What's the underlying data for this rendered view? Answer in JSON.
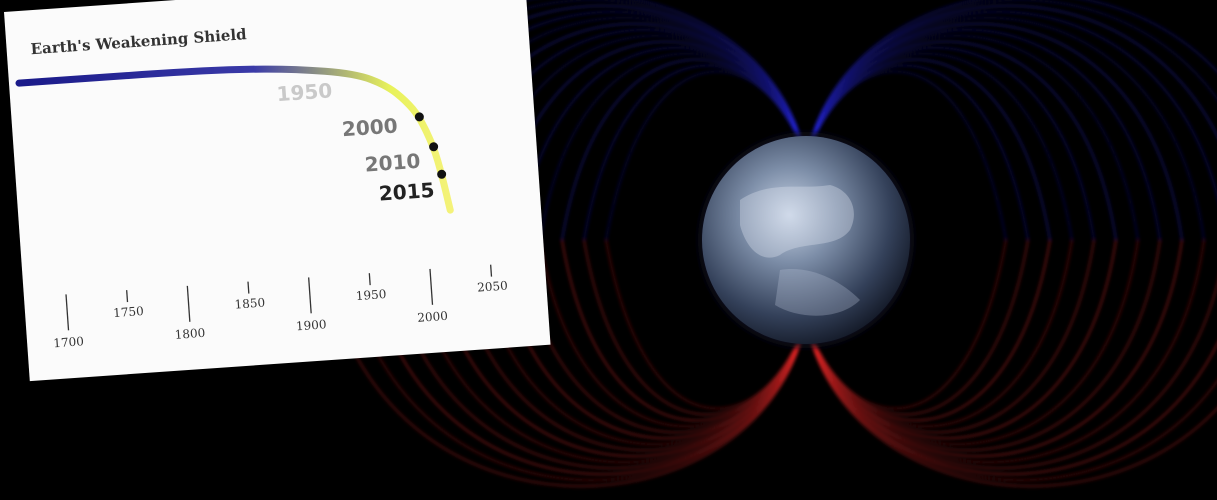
{
  "chart_data": {
    "type": "line",
    "title": "Earth's Weakening Shield",
    "xlabel": "",
    "ylabel": "",
    "xlim": [
      1690,
      2060
    ],
    "x_major_ticks": [
      "1700",
      "1800",
      "1900",
      "2000"
    ],
    "x_minor_ticks": [
      "1750",
      "1850",
      "1950",
      "2050"
    ],
    "points": [
      {
        "x": 1700,
        "y": 100
      },
      {
        "x": 1750,
        "y": 100
      },
      {
        "x": 1800,
        "y": 100
      },
      {
        "x": 1850,
        "y": 99.6
      },
      {
        "x": 1900,
        "y": 98.2
      },
      {
        "x": 1950,
        "y": 95
      },
      {
        "x": 1975,
        "y": 90
      },
      {
        "x": 1990,
        "y": 84
      },
      {
        "x": 2000,
        "y": 78
      },
      {
        "x": 2010,
        "y": 67
      },
      {
        "x": 2015,
        "y": 57
      },
      {
        "x": 2020,
        "y": 44
      }
    ],
    "marked_points": [
      {
        "label": "1950",
        "x": 1950
      },
      {
        "label": "2000",
        "x": 2000
      },
      {
        "label": "2010",
        "x": 2010
      },
      {
        "label": "2015",
        "x": 2015
      }
    ],
    "gradient_colors": [
      "#1b1b8a",
      "#3a3aa8",
      "#e8f25a",
      "#f4f27a",
      "#e24a4a"
    ]
  },
  "background": {
    "field_color_north": "#2a2aff",
    "field_color_south": "#ff2a2a"
  }
}
